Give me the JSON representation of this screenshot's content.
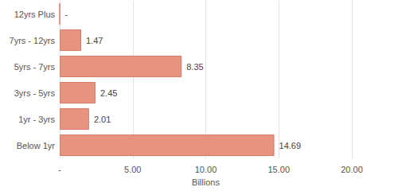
{
  "chart_data": {
    "type": "bar",
    "orientation": "horizontal",
    "categories": [
      "Below 1yr",
      "1yr - 3yrs",
      "3yrs - 5yrs",
      "5yrs - 7yrs",
      "7yrs - 12yrs",
      "12yrs Plus"
    ],
    "values": [
      14.69,
      2.01,
      2.45,
      8.35,
      1.47,
      0
    ],
    "value_labels": [
      "14.69",
      "2.01",
      "2.45",
      "8.35",
      "1.47",
      "-"
    ],
    "color": "#e8937f",
    "x_label": "Billions",
    "xlim": [
      0,
      20
    ],
    "xticks": [
      {
        "value": 0,
        "label": "-"
      },
      {
        "value": 5,
        "label": "5.00"
      },
      {
        "value": 10,
        "label": "10.00"
      },
      {
        "value": 15,
        "label": "15.00"
      },
      {
        "value": 20,
        "label": "20.00"
      }
    ],
    "grid": true,
    "data_labels": true
  }
}
